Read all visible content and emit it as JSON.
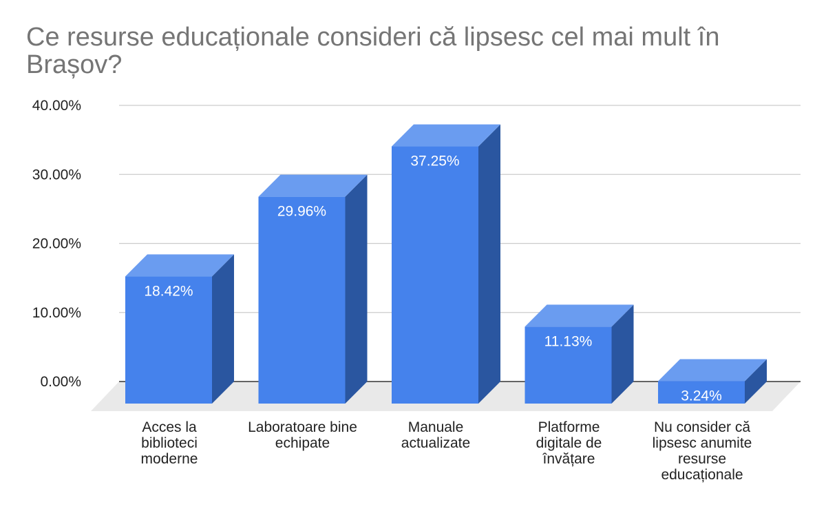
{
  "colors": {
    "bar_front": "#4582ec",
    "bar_top": "#6a9cf0",
    "bar_side": "#2a56a0",
    "floor": "#e9e9e9",
    "grid": "#cccccc",
    "axis": "#333333"
  },
  "chart_data": {
    "type": "bar",
    "title": "Ce resurse educaționale consideri că lipsesc cel mai mult în Brașov?",
    "xlabel": "",
    "ylabel": "",
    "ylim": [
      0,
      40
    ],
    "y_ticks": [
      "0.00%",
      "10.00%",
      "20.00%",
      "30.00%",
      "40.00%"
    ],
    "y_tick_values": [
      0,
      10,
      20,
      30,
      40
    ],
    "grid": true,
    "style": "3d",
    "categories": [
      [
        "Acces la",
        "biblioteci",
        "moderne"
      ],
      [
        "Laboratoare bine",
        "echipate"
      ],
      [
        "Manuale",
        "actualizate"
      ],
      [
        "Platforme",
        "digitale de",
        "învățare"
      ],
      [
        "Nu consider că",
        "lipsesc anumite",
        "resurse",
        "educaționale"
      ]
    ],
    "values": [
      18.42,
      29.96,
      37.25,
      11.13,
      3.24
    ],
    "data_labels": [
      "18.42%",
      "29.96%",
      "37.25%",
      "11.13%",
      "3.24%"
    ]
  }
}
